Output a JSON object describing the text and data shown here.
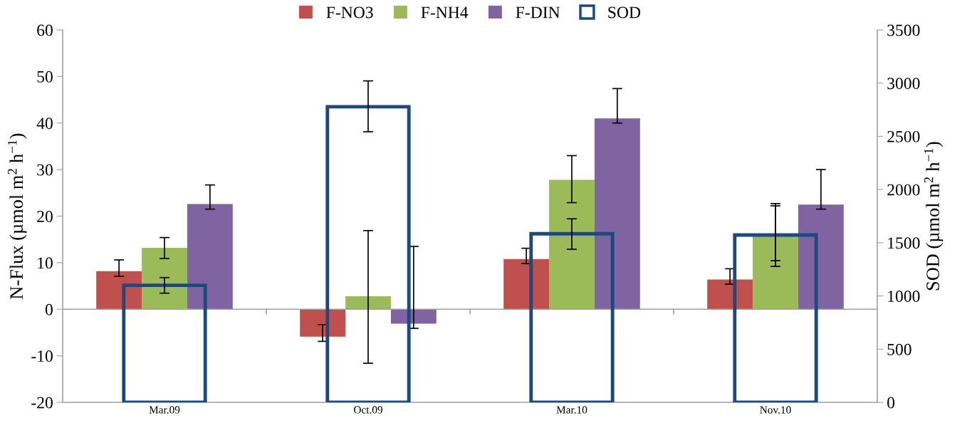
{
  "chart_data": {
    "type": "bar",
    "categories": [
      "Mar.09",
      "Oct.09",
      "Mar.10",
      "Nov.10"
    ],
    "ylabel": "N-Flux (µmol m$^{2}$ h$^{−1}$)",
    "y2label": "SOD (µmol m$^{2}$ h$^{−1}$)",
    "ylim": [
      -20,
      60
    ],
    "yticks": [
      -20,
      -10,
      0,
      10,
      20,
      30,
      40,
      50,
      60
    ],
    "y2lim": [
      0,
      3500
    ],
    "y2ticks": [
      0,
      500,
      1000,
      1500,
      2000,
      2500,
      3000,
      3500
    ],
    "legend": "top",
    "grid": false,
    "ref_lines": [
      {
        "axis": "y",
        "value": 0,
        "color": "#a0a0a0"
      }
    ],
    "series": [
      {
        "name": "F-NO3",
        "color": "#c0504d",
        "values": [
          8.2,
          -5.9,
          10.8,
          6.4
        ],
        "errors": [
          [
            7.1,
            10.6
          ],
          [
            -6.9,
            -3.3
          ],
          [
            9.8,
            13.1
          ],
          [
            5.4,
            8.7
          ]
        ]
      },
      {
        "name": "F-NH4",
        "color": "#9bbb59",
        "values": [
          13.2,
          2.8,
          27.8,
          15.9
        ],
        "errors": [
          [
            10.9,
            15.4
          ],
          [
            -11.6,
            16.9
          ],
          [
            22.9,
            33.0
          ],
          [
            9.2,
            22.7
          ]
        ]
      },
      {
        "name": "F-DIN",
        "color": "#8064a2",
        "values": [
          22.6,
          -3.1,
          41.0,
          22.5
        ],
        "errors": [
          [
            21.5,
            26.7
          ],
          [
            -4.1,
            13.5
          ],
          [
            40.0,
            47.4
          ],
          [
            21.5,
            30.0
          ]
        ]
      },
      {
        "name": "SOD",
        "color": "#1f497d",
        "axis": "y2",
        "values": [
          1100,
          2778,
          1584,
          1573
        ],
        "errors": [
          [
            1026,
            1173
          ],
          [
            2543,
            3021
          ],
          [
            1439,
            1725
          ],
          [
            1332,
            1847
          ]
        ]
      }
    ]
  }
}
